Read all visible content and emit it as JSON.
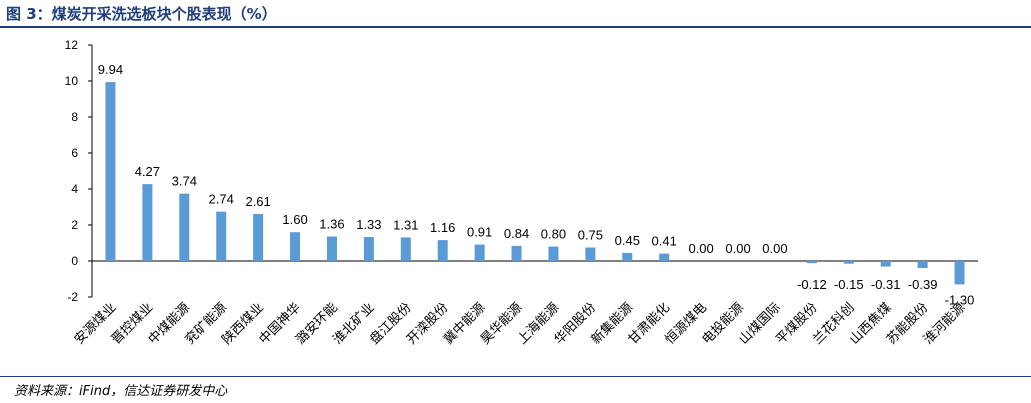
{
  "header": {
    "title": "图 3：煤炭开采洗选板块个股表现（%）"
  },
  "footer": {
    "source": "资料来源：iFind，信达证券研发中心"
  },
  "colors": {
    "bar": "#5b9bd5",
    "title": "#1f3e79",
    "axis": "#000000"
  },
  "chart_data": {
    "type": "bar",
    "categories": [
      "安源煤业",
      "晋控煤业",
      "中煤能源",
      "兖矿能源",
      "陕西煤业",
      "中国神华",
      "潞安环能",
      "淮北矿业",
      "盘江股份",
      "开滦股份",
      "冀中能源",
      "昊华能源",
      "上海能源",
      "华阳股份",
      "新集能源",
      "甘肃能化",
      "恒源煤电",
      "电投能源",
      "山煤国际",
      "平煤股份",
      "兰花科创",
      "山西焦煤",
      "苏能股份",
      "淮河能源"
    ],
    "values": [
      9.94,
      4.27,
      3.74,
      2.74,
      2.61,
      1.6,
      1.36,
      1.33,
      1.31,
      1.16,
      0.91,
      0.84,
      0.8,
      0.75,
      0.45,
      0.41,
      0.0,
      0.0,
      0.0,
      -0.12,
      -0.15,
      -0.31,
      -0.39,
      -1.3
    ],
    "value_labels": [
      "9.94",
      "4.27",
      "3.74",
      "2.74",
      "2.61",
      "1.60",
      "1.36",
      "1.33",
      "1.31",
      "1.16",
      "0.91",
      "0.84",
      "0.80",
      "0.75",
      "0.45",
      "0.41",
      "0.00",
      "0.00",
      "0.00",
      "-0.12",
      "-0.15",
      "-0.31",
      "-0.39",
      "-1.30"
    ],
    "ylim": [
      -2,
      12
    ],
    "yticks": [
      -2,
      0,
      2,
      4,
      6,
      8,
      10,
      12
    ],
    "grid": false,
    "legend": false
  }
}
